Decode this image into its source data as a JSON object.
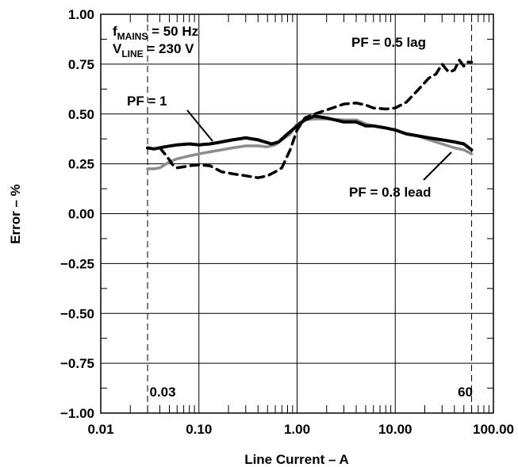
{
  "chart_data": {
    "type": "line",
    "xlabel": "Line Current – A",
    "ylabel": "Error – %",
    "xscale": "log",
    "xlim": [
      0.01,
      100
    ],
    "ylim": [
      -1.0,
      1.0
    ],
    "grid": true,
    "x_ticks": [
      0.01,
      0.1,
      1,
      10,
      100
    ],
    "x_tick_labels": [
      "0.01",
      "0.10",
      "1.00",
      "10.00",
      "100.00"
    ],
    "y_ticks": [
      -1.0,
      -0.75,
      -0.5,
      -0.25,
      0.0,
      0.25,
      0.5,
      0.75,
      1.0
    ],
    "y_tick_labels": [
      "−1.00",
      "−0.75",
      "−0.50",
      "−0.25",
      "0.00",
      "0.25",
      "0.50",
      "0.75",
      "1.00"
    ],
    "conditions": {
      "line1": {
        "prefix": "f",
        "sub": "MAINS",
        "suffix": " = 50 Hz"
      },
      "line2": {
        "prefix": "V",
        "sub": "LINE",
        "suffix": " = 230 V"
      }
    },
    "markers": [
      {
        "x": 0.03,
        "label": "0.03"
      },
      {
        "x": 60,
        "label": "60"
      }
    ],
    "series": [
      {
        "name": "PF = 1",
        "color": "#000000",
        "style": "solid",
        "x": [
          0.03,
          0.035,
          0.045,
          0.06,
          0.08,
          0.1,
          0.13,
          0.17,
          0.22,
          0.3,
          0.4,
          0.55,
          0.65,
          0.8,
          1.0,
          1.2,
          1.5,
          2.0,
          3.0,
          4.0,
          5.0,
          6.0,
          8.0,
          10.0,
          13.0,
          17.0,
          22.0,
          30.0,
          40.0,
          50.0,
          60.0
        ],
        "values": [
          0.33,
          0.325,
          0.335,
          0.345,
          0.35,
          0.345,
          0.35,
          0.36,
          0.37,
          0.38,
          0.37,
          0.35,
          0.36,
          0.4,
          0.44,
          0.47,
          0.49,
          0.48,
          0.46,
          0.46,
          0.44,
          0.44,
          0.43,
          0.42,
          0.4,
          0.39,
          0.38,
          0.37,
          0.36,
          0.35,
          0.32
        ]
      },
      {
        "name": "PF = 0.8 lead",
        "color": "#8c8c8c",
        "style": "solid",
        "x": [
          0.03,
          0.035,
          0.04,
          0.05,
          0.06,
          0.08,
          0.1,
          0.13,
          0.17,
          0.22,
          0.3,
          0.4,
          0.5,
          0.6,
          0.7,
          0.85,
          1.0,
          1.2,
          1.5,
          2.0,
          3.0,
          4.0,
          5.0,
          6.0,
          8.0,
          10.0,
          13.0,
          17.0,
          22.0,
          30.0,
          40.0,
          50.0,
          60.0
        ],
        "values": [
          0.225,
          0.225,
          0.23,
          0.26,
          0.275,
          0.29,
          0.3,
          0.31,
          0.32,
          0.33,
          0.34,
          0.34,
          0.335,
          0.345,
          0.37,
          0.4,
          0.45,
          0.47,
          0.475,
          0.475,
          0.47,
          0.47,
          0.45,
          0.44,
          0.43,
          0.42,
          0.4,
          0.39,
          0.37,
          0.35,
          0.33,
          0.32,
          0.3
        ]
      },
      {
        "name": "PF = 0.5 lag",
        "color": "#000000",
        "style": "dashed",
        "x": [
          0.04,
          0.045,
          0.05,
          0.055,
          0.06,
          0.07,
          0.08,
          0.1,
          0.13,
          0.17,
          0.22,
          0.3,
          0.4,
          0.5,
          0.6,
          0.7,
          0.85,
          1.0,
          1.2,
          1.5,
          2.0,
          3.0,
          4.0,
          5.0,
          6.0,
          8.0,
          10.0,
          13.0,
          17.0,
          22.0,
          26.0,
          30.0,
          35.0,
          40.0,
          45.0,
          50.0,
          55.0,
          60.0
        ],
        "values": [
          0.33,
          0.3,
          0.27,
          0.24,
          0.23,
          0.235,
          0.24,
          0.245,
          0.24,
          0.21,
          0.2,
          0.19,
          0.18,
          0.19,
          0.21,
          0.23,
          0.32,
          0.42,
          0.48,
          0.5,
          0.52,
          0.55,
          0.555,
          0.545,
          0.53,
          0.525,
          0.53,
          0.56,
          0.62,
          0.68,
          0.7,
          0.75,
          0.71,
          0.72,
          0.77,
          0.74,
          0.76,
          0.76
        ]
      }
    ],
    "annotations": [
      {
        "text": "PF = 0.5 lag"
      },
      {
        "text": "PF = 1"
      },
      {
        "text": "PF = 0.8 lead"
      }
    ]
  }
}
